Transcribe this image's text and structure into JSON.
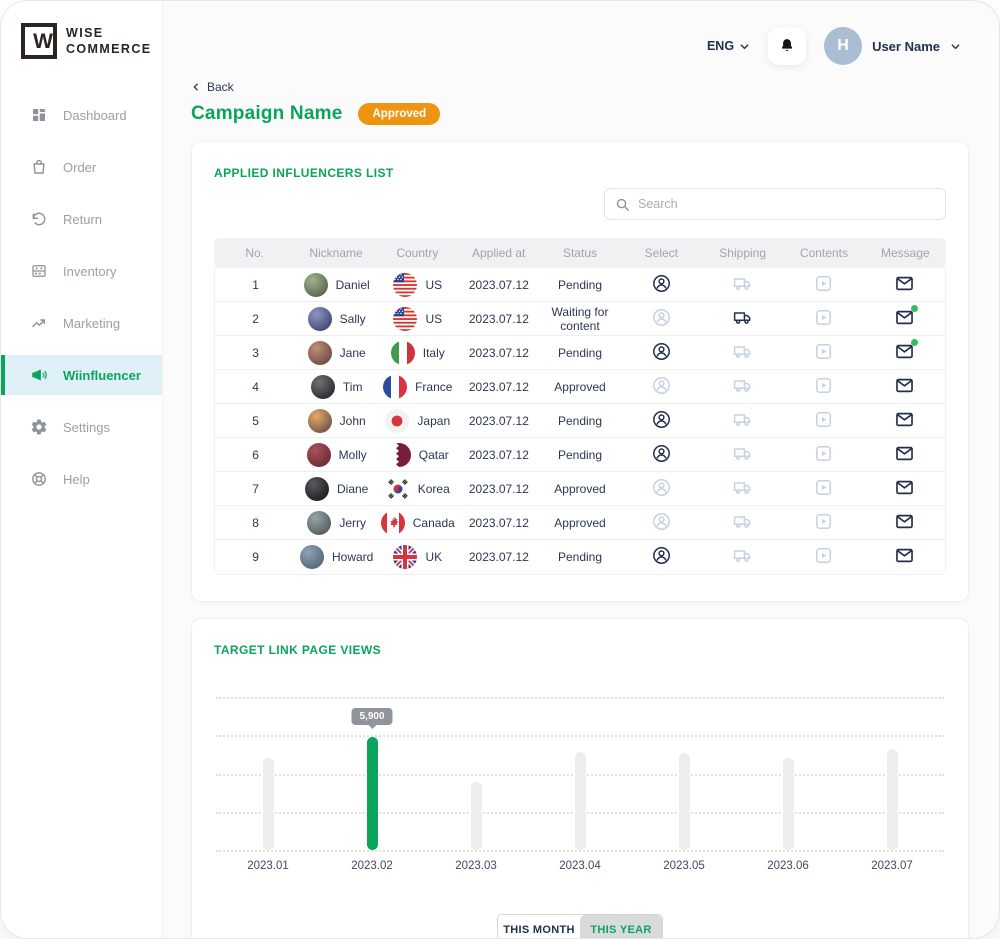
{
  "brand": {
    "line1": "WISE",
    "line2": "COMMERCE"
  },
  "header": {
    "language": "ENG",
    "user_initial": "H",
    "user_name": "User Name"
  },
  "sidebar": {
    "items": [
      {
        "label": "Dashboard",
        "icon": "dashboard",
        "active": false
      },
      {
        "label": "Order",
        "icon": "order",
        "active": false
      },
      {
        "label": "Return",
        "icon": "return",
        "active": false
      },
      {
        "label": "Inventory",
        "icon": "inventory",
        "active": false
      },
      {
        "label": "Marketing",
        "icon": "marketing",
        "active": false
      },
      {
        "label": "Wiinfluencer",
        "icon": "megaphone",
        "active": true
      },
      {
        "label": "Settings",
        "icon": "settings",
        "active": false
      },
      {
        "label": "Help",
        "icon": "help",
        "active": false
      }
    ]
  },
  "page": {
    "back": "Back",
    "title": "Campaign Name",
    "badge": "Approved"
  },
  "influencers": {
    "title": "APPLIED INFLUENCERS LIST",
    "search_placeholder": "Search",
    "columns": [
      "No.",
      "Nickname",
      "Country",
      "Applied at",
      "Status",
      "Select",
      "Shipping",
      "Contents",
      "Message"
    ],
    "rows": [
      {
        "no": "1",
        "nickname": "Daniel",
        "country": "US",
        "flag": "us",
        "applied_at": "2023.07.12",
        "status": "Pending",
        "select_active": true,
        "shipping_active": false,
        "message_unread": false,
        "avatar": [
          "#a3b38b",
          "#45523f"
        ]
      },
      {
        "no": "2",
        "nickname": "Sally",
        "country": "US",
        "flag": "us",
        "applied_at": "2023.07.12",
        "status": "Waiting for content",
        "select_active": false,
        "shipping_active": true,
        "message_unread": true,
        "avatar": [
          "#8d96c6",
          "#2e3560"
        ]
      },
      {
        "no": "3",
        "nickname": "Jane",
        "country": "Italy",
        "flag": "it",
        "applied_at": "2023.07.12",
        "status": "Pending",
        "select_active": true,
        "shipping_active": false,
        "message_unread": true,
        "avatar": [
          "#bd8f7b",
          "#5a3b30"
        ]
      },
      {
        "no": "4",
        "nickname": "Tim",
        "country": "France",
        "flag": "fr",
        "applied_at": "2023.07.12",
        "status": "Approved",
        "select_active": false,
        "shipping_active": false,
        "message_unread": false,
        "avatar": [
          "#6f6f74",
          "#1b1b1e"
        ]
      },
      {
        "no": "5",
        "nickname": "John",
        "country": "Japan",
        "flag": "jp",
        "applied_at": "2023.07.12",
        "status": "Pending",
        "select_active": true,
        "shipping_active": false,
        "message_unread": false,
        "avatar": [
          "#eaa96c",
          "#51403c"
        ]
      },
      {
        "no": "6",
        "nickname": "Molly",
        "country": "Qatar",
        "flag": "qa",
        "applied_at": "2023.07.12",
        "status": "Pending",
        "select_active": true,
        "shipping_active": false,
        "message_unread": false,
        "avatar": [
          "#a8545c",
          "#5e1f2a"
        ]
      },
      {
        "no": "7",
        "nickname": "Diane",
        "country": "Korea",
        "flag": "kr",
        "applied_at": "2023.07.12",
        "status": "Approved",
        "select_active": false,
        "shipping_active": false,
        "message_unread": false,
        "avatar": [
          "#59595e",
          "#101013"
        ]
      },
      {
        "no": "8",
        "nickname": "Jerry",
        "country": "Canada",
        "flag": "ca",
        "applied_at": "2023.07.12",
        "status": "Approved",
        "select_active": false,
        "shipping_active": false,
        "message_unread": false,
        "avatar": [
          "#9aa4a8",
          "#3e4a50"
        ]
      },
      {
        "no": "9",
        "nickname": "Howard",
        "country": "UK",
        "flag": "uk",
        "applied_at": "2023.07.12",
        "status": "Pending",
        "select_active": true,
        "shipping_active": false,
        "message_unread": false,
        "avatar": [
          "#8fa3b5",
          "#44586a"
        ]
      }
    ]
  },
  "views": {
    "toggle": {
      "month_label": "THIS MONTH",
      "year_label": "THIS YEAR",
      "selected": "THIS YEAR"
    }
  },
  "chart_data": {
    "type": "bar",
    "title": "TARGET LINK PAGE VIEWS",
    "categories": [
      "2023.01",
      "2023.02",
      "2023.03",
      "2023.04",
      "2023.05",
      "2023.06",
      "2023.07"
    ],
    "values": [
      4800,
      5900,
      3550,
      5150,
      5050,
      4800,
      5300
    ],
    "highlight_index": 1,
    "highlight_label": "5,900",
    "xlabel": "",
    "ylabel": "",
    "ylim": [
      0,
      8000
    ],
    "gridlines": 5,
    "grid": "dotted-horizontal",
    "legend": "none",
    "bar_color_default": "#ededee",
    "bar_color_highlight": "#0aa45c"
  },
  "colors": {
    "accent_green": "#0aa45c",
    "badge_orange": "#ef9411",
    "dark_navy": "#20304f",
    "icon_active": "#232f4b",
    "icon_inactive": "#c5d1e0",
    "unread_dot": "#2fc05c",
    "tooltip_bg": "#90959d",
    "active_item_bg": "#e0f0f9",
    "avatar_bg": "#a9bed3",
    "table_header_bg": "#f0f1f3"
  }
}
